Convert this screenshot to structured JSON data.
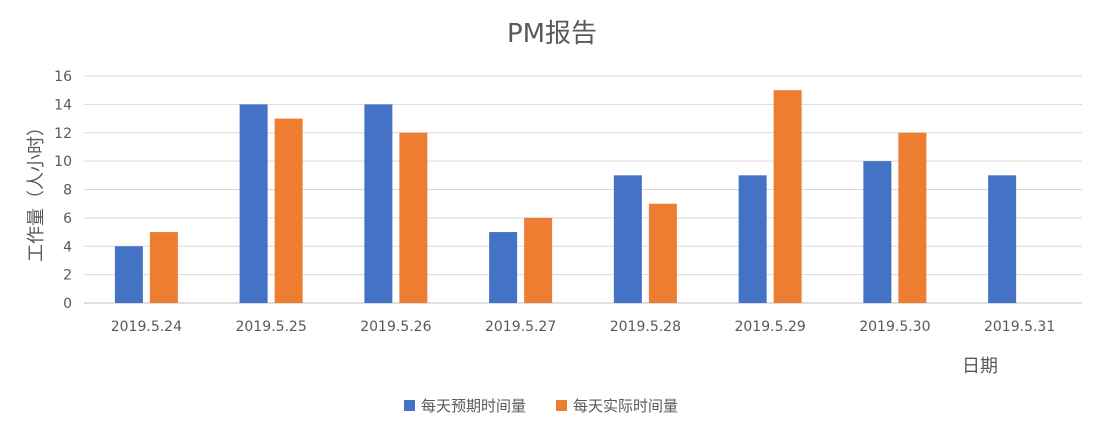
{
  "chart_data": {
    "type": "bar",
    "title": "PM报告",
    "xlabel": "日期",
    "ylabel": "工作量（人小时）",
    "categories": [
      "2019.5.24",
      "2019.5.25",
      "2019.5.26",
      "2019.5.27",
      "2019.5.28",
      "2019.5.29",
      "2019.5.30",
      "2019.5.31"
    ],
    "series": [
      {
        "name": "每天预期时间量",
        "color": "#4472C4",
        "values": [
          4,
          14,
          14,
          5,
          9,
          9,
          10,
          9
        ]
      },
      {
        "name": "每天实际时间量",
        "color": "#ED7D31",
        "values": [
          5,
          13,
          12,
          6,
          7,
          15,
          12,
          null
        ]
      }
    ],
    "ylim": [
      0,
      16
    ],
    "yticks": [
      0,
      2,
      4,
      6,
      8,
      10,
      12,
      14,
      16
    ],
    "grid": true,
    "legend_position": "bottom"
  }
}
